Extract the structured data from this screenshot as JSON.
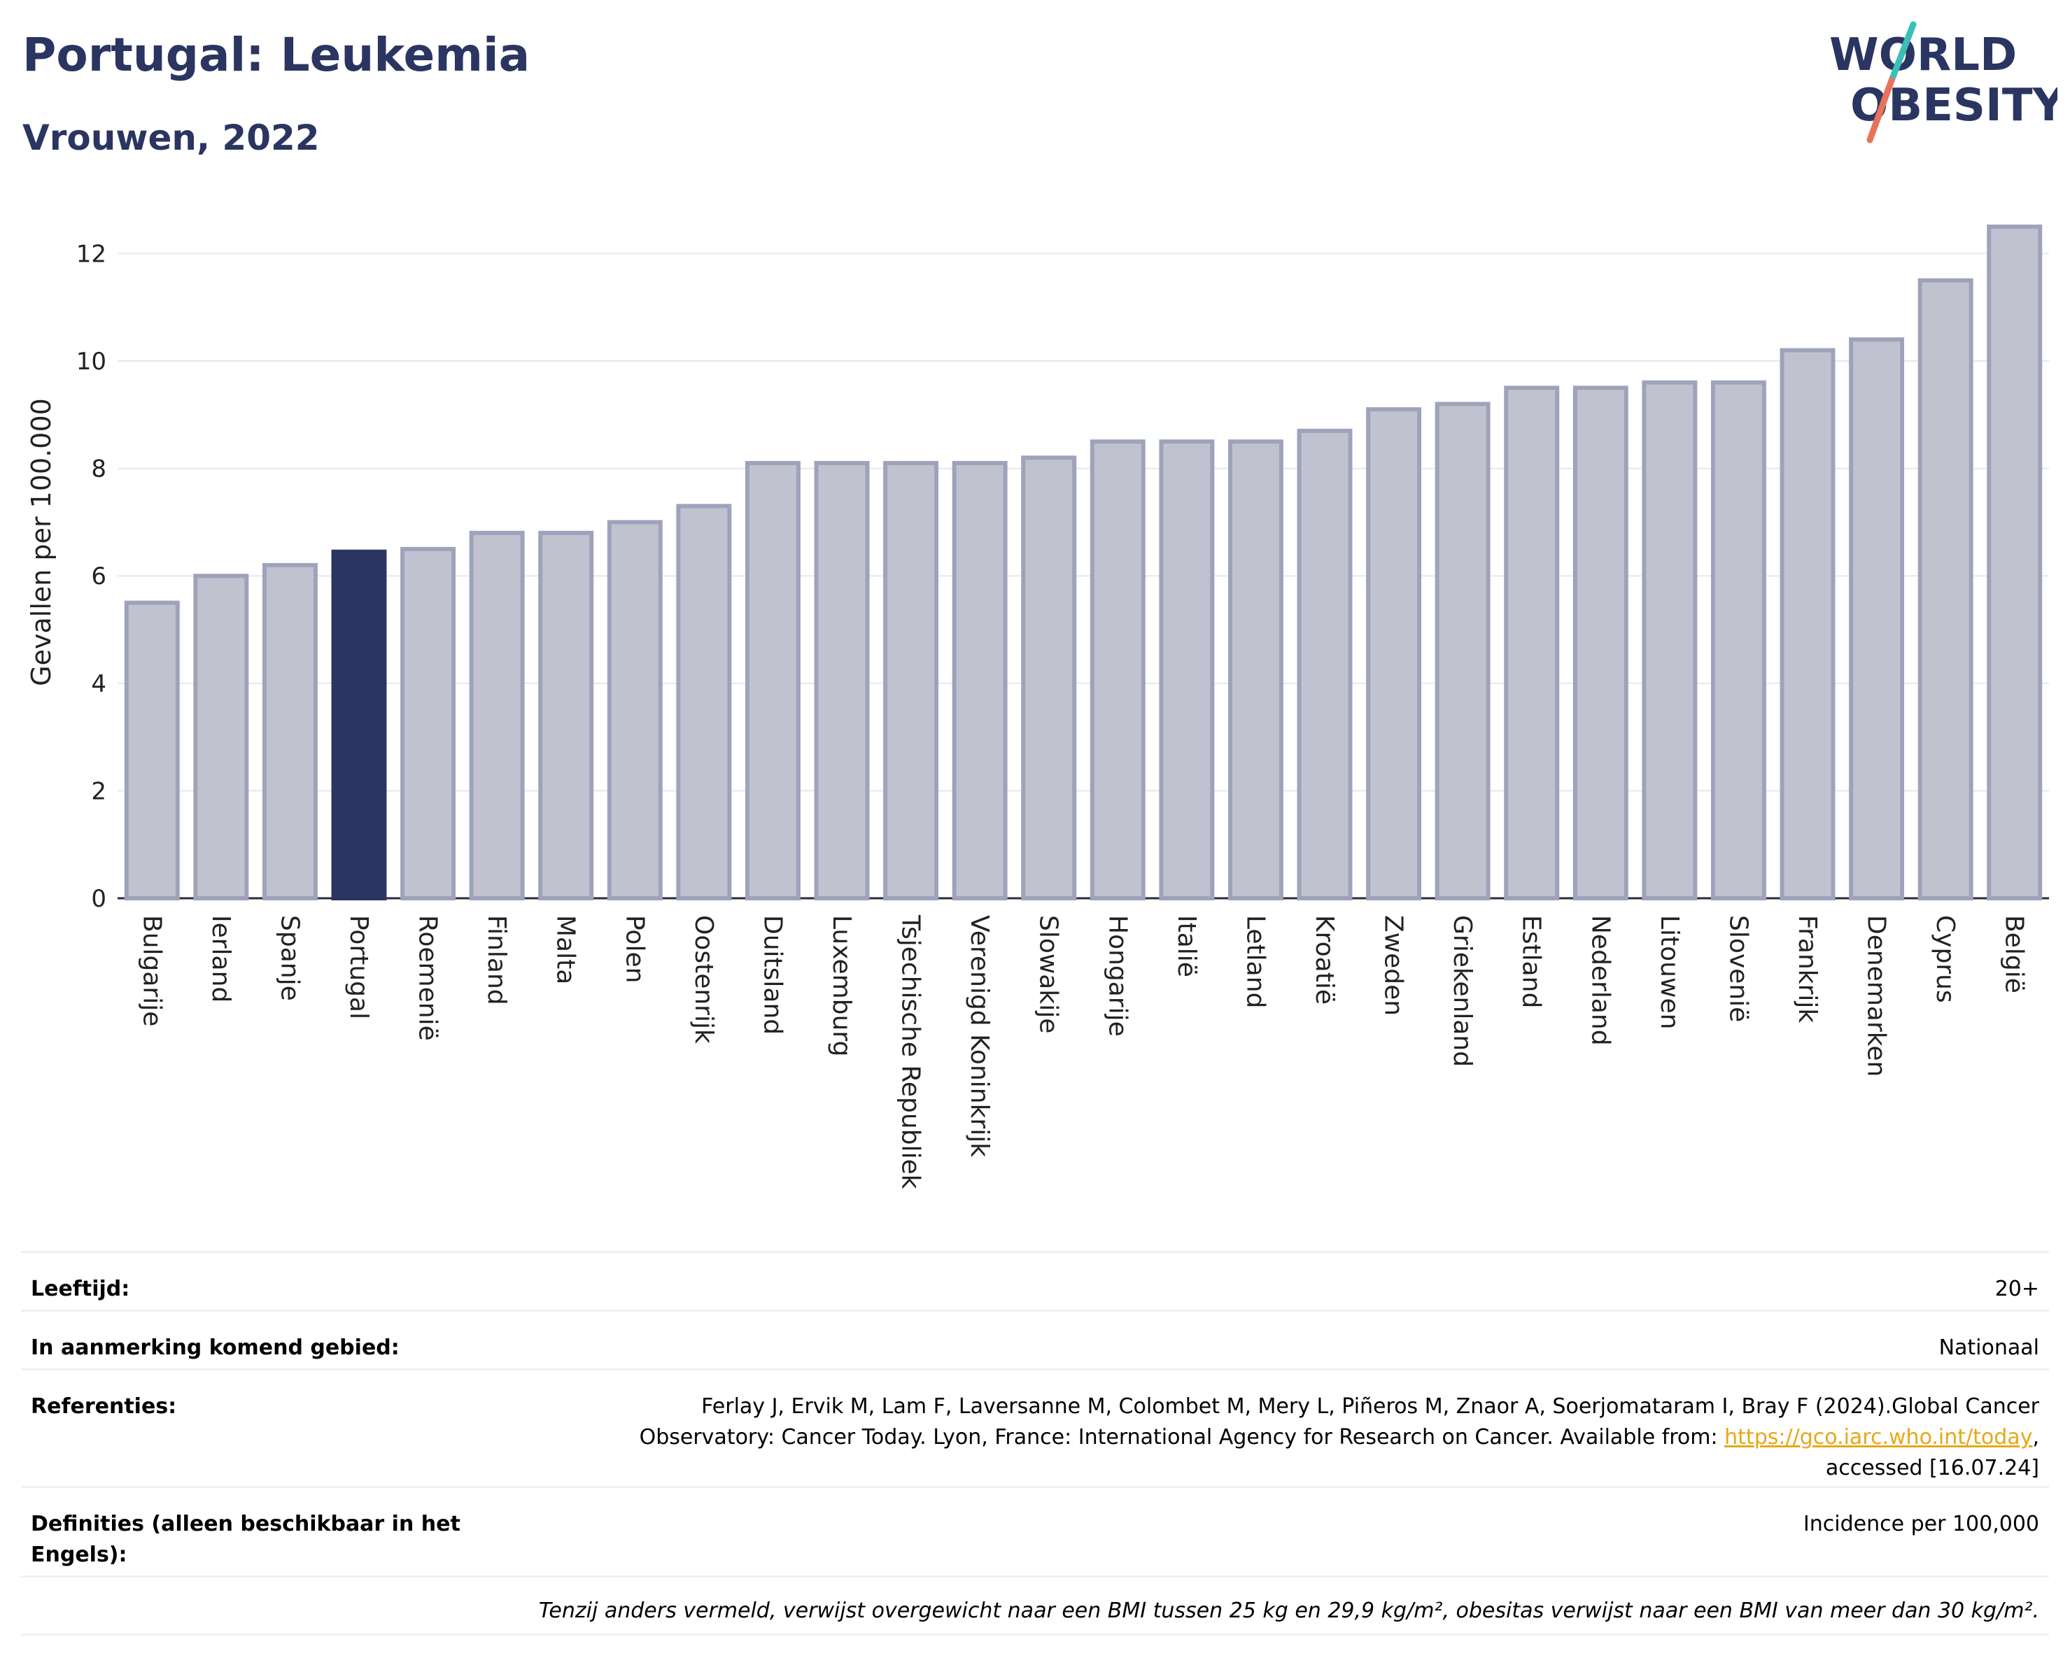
{
  "header": {
    "title": "Portugal: Leukemia",
    "subtitle": "Vrouwen, 2022",
    "logo_line1": "WORLD",
    "logo_line2": "OBESITY"
  },
  "colors": {
    "highlight": "#2b3561",
    "bar_fill": "#c0c3cf",
    "bar_stroke": "#9ea3bb",
    "logo_text": "#2b3561",
    "logo_slash_top": "#3bbfb8",
    "logo_slash_bottom": "#e8735a",
    "link": "#e6a817"
  },
  "chart_data": {
    "type": "bar",
    "ylabel": "Gevallen per 100.000",
    "xlabel": "",
    "ylim": [
      0,
      13
    ],
    "yticks": [
      0,
      2,
      4,
      6,
      8,
      10,
      12
    ],
    "grid": true,
    "highlight_category": "Portugal",
    "categories": [
      "Bulgarije",
      "Ierland",
      "Spanje",
      "Portugal",
      "Roemenië",
      "Finland",
      "Malta",
      "Polen",
      "Oostenrijk",
      "Duitsland",
      "Luxemburg",
      "Tsjechische Republiek",
      "Verenigd Koninkrijk",
      "Slowakije",
      "Hongarije",
      "Italië",
      "Letland",
      "Kroatië",
      "Zweden",
      "Griekenland",
      "Estland",
      "Nederland",
      "Litouwen",
      "Slovenië",
      "Frankrijk",
      "Denemarken",
      "Cyprus",
      "België"
    ],
    "values": [
      5.5,
      6.0,
      6.2,
      6.45,
      6.5,
      6.8,
      6.8,
      7.0,
      7.3,
      8.1,
      8.1,
      8.1,
      8.1,
      8.2,
      8.5,
      8.5,
      8.5,
      8.7,
      9.1,
      9.2,
      9.5,
      9.5,
      9.6,
      9.6,
      10.2,
      10.4,
      11.5,
      12.5
    ]
  },
  "info": {
    "age_label": "Leeftijd:",
    "age_value": "20+",
    "area_label": "In aanmerking komend gebied:",
    "area_value": "Nationaal",
    "ref_label": "Referenties:",
    "ref_line1": "Ferlay J, Ervik M, Lam F, Laversanne M, Colombet M, Mery L, Piñeros M, Znaor A, Soerjomataram I, Bray F (2024).Global Cancer",
    "ref_line2_pre": "Observatory: Cancer Today. Lyon, France: International Agency for Research on Cancer. Available from: ",
    "ref_link": "https://gco.iarc.who.int/today",
    "ref_line2_post": ",",
    "ref_line3": "accessed [16.07.24]",
    "def_label": "Definities (alleen beschikbaar in het Engels):",
    "def_value": "Incidence per 100,000",
    "note": "Tenzij anders vermeld, verwijst overgewicht naar een BMI tussen 25 kg en 29,9 kg/m², obesitas verwijst naar een BMI van meer dan 30 kg/m²."
  }
}
